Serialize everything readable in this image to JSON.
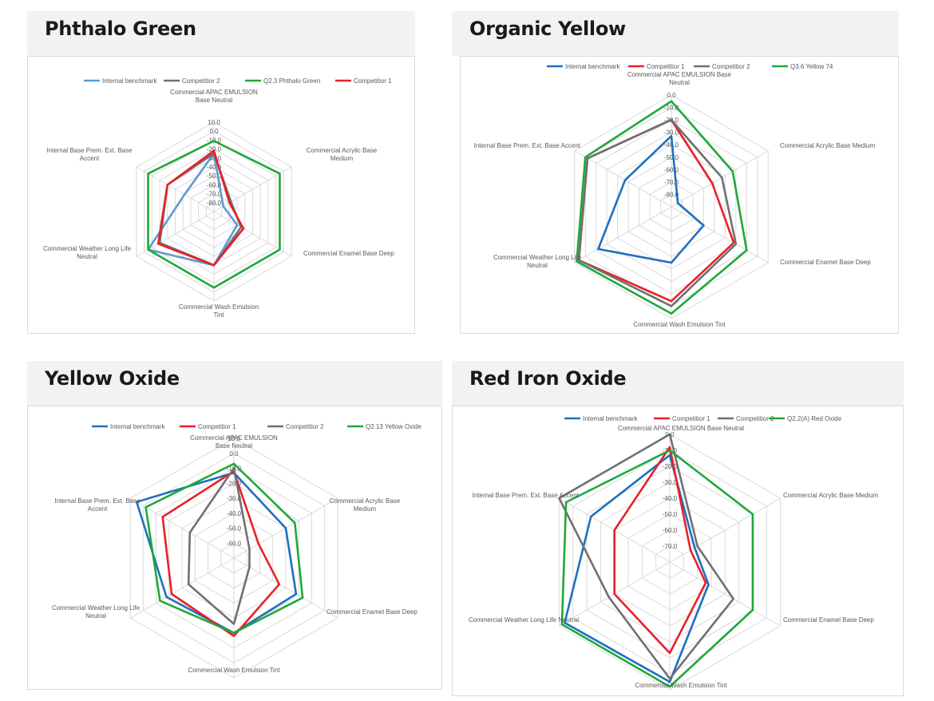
{
  "panels": [
    {
      "title": "Phthalo Green"
    },
    {
      "title": "Organic Yellow"
    },
    {
      "title": "Yellow Oxide"
    },
    {
      "title": "Red Iron Oxide"
    }
  ],
  "colors": {
    "internal_benchmark_pg": "#5b9bd5",
    "internal_benchmark": "#1f6fbf",
    "competitor_1": "#e8202a",
    "competitor_2": "#707070",
    "product": "#1fa83a",
    "grid": "#d9d9d9"
  },
  "chart_data": [
    {
      "type": "radar",
      "title": "Phthalo Green",
      "axes": [
        "Commercial APAC EMULSION Base Neutral",
        "Commercial  Acrylic  Base Medium",
        "Commercial Enamel Base Deep",
        "Commercial  Wash Emulsion Tint",
        "Commercial Weather Long Life Neutral",
        "Internal Base  Prem. Ext. Base Accent"
      ],
      "ticks": [
        "10.0",
        "0.0",
        "-10.0",
        "-20.0",
        "-30.0",
        "-40.0",
        "-50.0",
        "-60.0",
        "-70.0",
        "-80.0"
      ],
      "range": [
        -90,
        10
      ],
      "legend": [
        "Internal benchmark",
        "Competitior 2",
        "Q2.3 Phthalo Green",
        "Competitior 1"
      ],
      "series": [
        {
          "name": "Internal benchmark",
          "color": "#5b9bd5",
          "values": [
            -25,
            -78,
            -60,
            -30,
            -5,
            -52
          ]
        },
        {
          "name": "Competitior 2",
          "color": "#707070",
          "values": [
            -25,
            -68,
            -55,
            -30,
            -20,
            -30
          ]
        },
        {
          "name": "Q2.3 Phthalo Green",
          "color": "#1fa83a",
          "values": [
            -11,
            -5,
            -5,
            -5,
            -5,
            -5
          ]
        },
        {
          "name": "Competitior 1",
          "color": "#e8202a",
          "values": [
            -22,
            -70,
            -52,
            -30,
            -18,
            -30
          ]
        }
      ]
    },
    {
      "type": "radar",
      "title": "Organic Yellow",
      "axes": [
        "Commercial APAC EMULSION Base Neutral",
        "Commercial  Acrylic  Base Medium",
        "Commercial Enamel Base Deep",
        "Commercial  Wash Emulsion Tint",
        "Commercial Weather Long Life Neutral",
        "Internal Base  Prem. Ext. Base Accent"
      ],
      "ticks": [
        "0.0",
        "-10.0",
        "-20.0",
        "-30.0",
        "-40.0",
        "-50.0",
        "-60.0",
        "-70.0",
        "-80.0"
      ],
      "range": [
        -90,
        0
      ],
      "legend": [
        "Internal benchmark",
        "Competitior 1",
        "Competitior 2",
        "Q3.6 Yellow 74"
      ],
      "series": [
        {
          "name": "Internal benchmark",
          "color": "#1f6fbf",
          "values": [
            -33,
            -84,
            -60,
            -45,
            -22,
            -47
          ]
        },
        {
          "name": "Competitior 1",
          "color": "#e8202a",
          "values": [
            -20,
            -52,
            -32,
            -14,
            -4,
            -12
          ]
        },
        {
          "name": "Competitior 2",
          "color": "#707070",
          "values": [
            -20,
            -43,
            -30,
            -10,
            -4,
            -12
          ]
        },
        {
          "name": "Q3.6 Yellow 74",
          "color": "#1fa83a",
          "values": [
            -5,
            -33,
            -20,
            -4,
            -2,
            -10
          ]
        }
      ]
    },
    {
      "type": "radar",
      "title": "Yellow Oxide",
      "axes": [
        "Commercial APAC EMULSION Base Neutral",
        "Commercial  Acrylic  Base Medium",
        "Commercial Enamel Base Deep",
        "Commercial  Wash Emulsion Tint",
        "Commercial Weather Long Life Neutral",
        "Internal Base  Prem. Ext. Base Accent"
      ],
      "ticks": [
        "10.0",
        "0.0",
        "-10.0",
        "-20.0",
        "-30.0",
        "-40.0",
        "-50.0",
        "-60.0"
      ],
      "range": [
        -70,
        10
      ],
      "legend": [
        "Internal benchmark",
        "Competitior 1",
        "Competitior 2",
        "Q2.13 Yellow Oxide"
      ],
      "series": [
        {
          "name": "Internal benchmark",
          "color": "#1f6fbf",
          "values": [
            -13,
            -30,
            -22,
            -20,
            -18,
            5
          ]
        },
        {
          "name": "Competitior 1",
          "color": "#e8202a",
          "values": [
            -12,
            -51,
            -35,
            -18,
            -22,
            -15
          ]
        },
        {
          "name": "Competitior 2",
          "color": "#707070",
          "values": [
            -10,
            -58,
            -58,
            -26,
            -35,
            -36
          ]
        },
        {
          "name": "Q2.13 Yellow Oxide",
          "color": "#1fa83a",
          "values": [
            -7,
            -23,
            -17,
            -20,
            -13,
            -2
          ]
        }
      ]
    },
    {
      "type": "radar",
      "title": "Red Iron Oxide",
      "axes": [
        "Commercial APAC EMULSION Base Neutral",
        "Commercial  Acrylic  Base Medium",
        "Commercial Enamel Base Deep",
        "Commercial  Wash Emulsion Tint",
        "Commercial Weather Long Life Neutral",
        "Internal Base  Prem. Ext. Base Accent"
      ],
      "ticks": [
        "0.0",
        "-10.0",
        "-20.0",
        "-30.0",
        "-40.0",
        "-50.0",
        "-60.0",
        "-70.0"
      ],
      "range": [
        -80,
        0
      ],
      "legend": [
        "Internal benchmark",
        "Competitior 1",
        "Competitior 2",
        "Q2.2(A) Red Oxide"
      ],
      "series": [
        {
          "name": "Internal benchmark",
          "color": "#1f6fbf",
          "values": [
            -13,
            -62,
            -52,
            -5,
            -4,
            -23
          ]
        },
        {
          "name": "Competitior 1",
          "color": "#e8202a",
          "values": [
            -8,
            -65,
            -54,
            -23,
            -40,
            -40
          ]
        },
        {
          "name": "Competitior 2",
          "color": "#707070",
          "values": [
            0,
            -60,
            -34,
            -7,
            -36,
            0
          ]
        },
        {
          "name": "Q2.2(A) Red Oxide",
          "color": "#1fa83a",
          "values": [
            -10,
            -20,
            -20,
            -2,
            -2,
            -5
          ]
        }
      ]
    }
  ]
}
